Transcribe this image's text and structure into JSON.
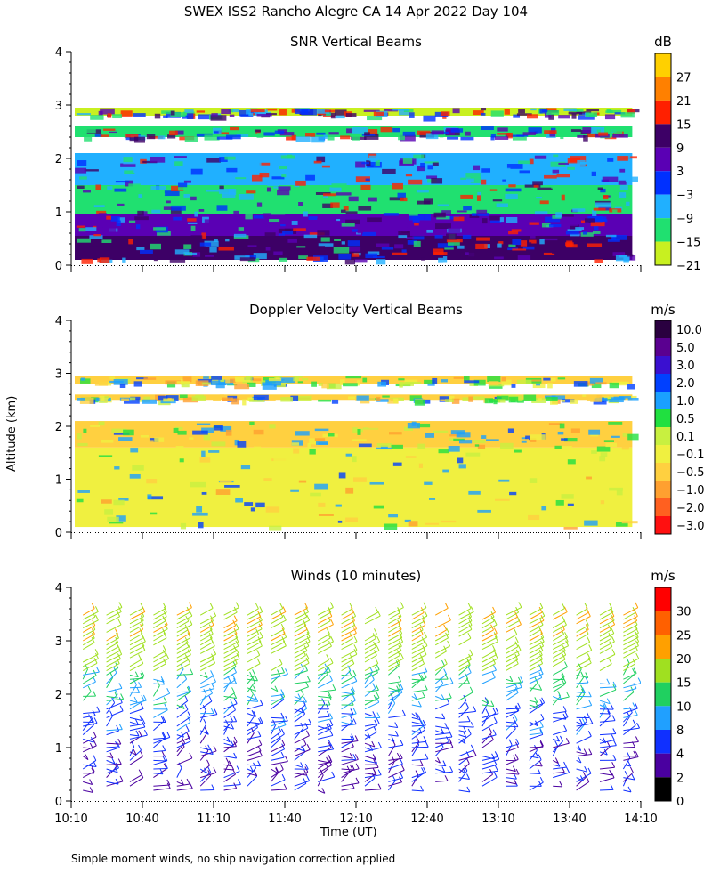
{
  "main_title": "SWEX ISS2 Rancho Alegre CA  14 Apr 2022 Day 104",
  "ylabel": "Altitude (km)",
  "xlabel": "Time (UT)",
  "footnote": "Simple moment winds, no ship navigation correction applied",
  "chart_data": [
    {
      "type": "heatmap",
      "title": "SNR Vertical Beams",
      "unit": "dB",
      "y_ticks": [
        "0",
        "1",
        "2",
        "3",
        "4"
      ],
      "ylim": [
        0,
        4
      ],
      "x_ticks": [
        "10:10",
        "10:40",
        "11:10",
        "11:40",
        "12:10",
        "12:40",
        "13:10",
        "13:40",
        "14:10"
      ],
      "colorbar_labels": [
        "27",
        "21",
        "15",
        "9",
        "3",
        "−3",
        "−9",
        "−15",
        "−21"
      ],
      "colorbar_colors": [
        "#ffd000",
        "#ff8000",
        "#ff2000",
        "#3d0066",
        "#5a00b4",
        "#0030ff",
        "#20b0ff",
        "#20e070",
        "#c8f020"
      ],
      "bands": [
        {
          "ymin": 0.1,
          "ymax": 0.55,
          "value": 9
        },
        {
          "ymin": 0.55,
          "ymax": 0.95,
          "value": 3
        },
        {
          "ymin": 0.95,
          "ymax": 1.5,
          "value": -15
        },
        {
          "ymin": 1.5,
          "ymax": 2.1,
          "value": -9
        },
        {
          "ymin": 2.4,
          "ymax": 2.6,
          "value": -15
        },
        {
          "ymin": 2.8,
          "ymax": 2.95,
          "value": -21
        }
      ]
    },
    {
      "type": "heatmap",
      "title": "Doppler Velocity Vertical Beams",
      "unit": "m/s",
      "y_ticks": [
        "0",
        "1",
        "2",
        "3",
        "4"
      ],
      "ylim": [
        0,
        4
      ],
      "x_ticks": [
        "10:10",
        "10:40",
        "11:10",
        "11:40",
        "12:10",
        "12:40",
        "13:10",
        "13:40",
        "14:10"
      ],
      "colorbar_labels": [
        "10.0",
        "5.0",
        "3.0",
        "2.0",
        "1.0",
        "0.5",
        "0.1",
        "−0.1",
        "−0.5",
        "−1.0",
        "−2.0",
        "−3.0"
      ],
      "colorbar_colors": [
        "#2a0040",
        "#5a0090",
        "#3a10d0",
        "#0040ff",
        "#1aa0ff",
        "#20e040",
        "#c8f040",
        "#f0f040",
        "#ffd040",
        "#ffa030",
        "#ff6020",
        "#ff1010"
      ],
      "bands": [
        {
          "ymin": 0.1,
          "ymax": 1.6,
          "value": -0.1
        },
        {
          "ymin": 1.6,
          "ymax": 2.1,
          "value": -0.5
        },
        {
          "ymin": 2.5,
          "ymax": 2.6,
          "value": -0.5
        },
        {
          "ymin": 2.8,
          "ymax": 2.95,
          "value": -0.5
        }
      ]
    },
    {
      "type": "scatter",
      "title": "Winds (10 minutes)",
      "unit": "m/s",
      "y_ticks": [
        "0",
        "1",
        "2",
        "3",
        "4"
      ],
      "ylim": [
        0,
        4
      ],
      "x_ticks": [
        "10:10",
        "10:40",
        "11:10",
        "11:40",
        "12:10",
        "12:40",
        "13:10",
        "13:40",
        "14:10"
      ],
      "colorbar_labels": [
        "30",
        "25",
        "20",
        "15",
        "10",
        "8",
        "4",
        "2",
        "0"
      ],
      "colorbar_colors": [
        "#ff0000",
        "#ff6000",
        "#ffa000",
        "#a0e020",
        "#20d060",
        "#20a0ff",
        "#1030ff",
        "#4a00a0",
        "#000000"
      ],
      "profile_times": [
        "10:10",
        "10:20",
        "10:30",
        "10:40",
        "10:50",
        "11:00",
        "11:10",
        "11:20",
        "11:30",
        "11:40",
        "11:50",
        "12:00",
        "12:10",
        "12:20",
        "12:30",
        "12:40",
        "12:50",
        "13:00",
        "13:10",
        "13:20",
        "13:30",
        "13:40",
        "13:50",
        "14:00"
      ],
      "speed_layers": [
        {
          "altitude_km": 0.5,
          "speed_ms": 3
        },
        {
          "altitude_km": 1.5,
          "speed_ms": 5
        },
        {
          "altitude_km": 2.2,
          "speed_ms": 9
        },
        {
          "altitude_km": 2.8,
          "speed_ms": 14
        },
        {
          "altitude_km": 3.4,
          "speed_ms": 17
        }
      ]
    }
  ]
}
